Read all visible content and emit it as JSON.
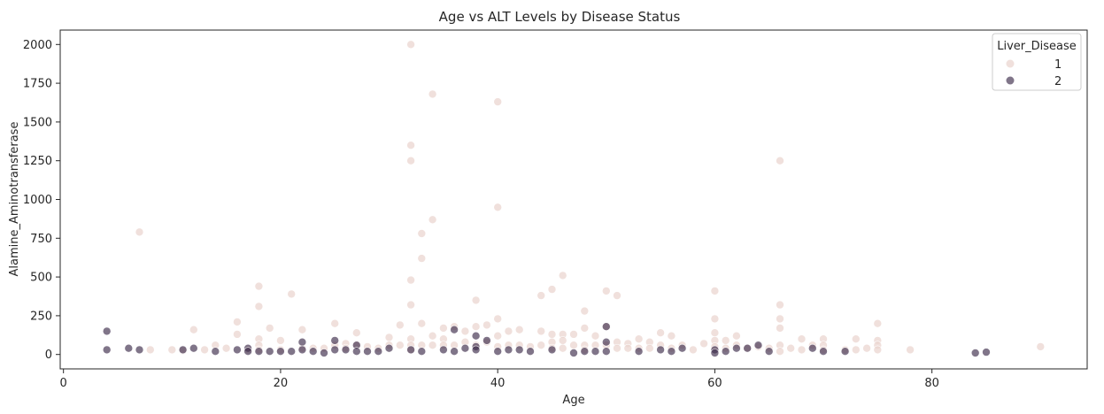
{
  "chart_data": {
    "type": "scatter",
    "title": "Age vs ALT Levels by Disease Status",
    "xlabel": "Age",
    "ylabel": "Alamine_Aminotransferase",
    "xlim": [
      -0.3,
      94.3
    ],
    "ylim": [
      -93,
      2093
    ],
    "xticks": [
      0,
      20,
      40,
      60,
      80
    ],
    "yticks": [
      0,
      250,
      500,
      750,
      1000,
      1250,
      1500,
      1750,
      2000
    ],
    "grid": false,
    "legend": {
      "title": "Liver_Disease",
      "position": "top-right"
    },
    "series": [
      {
        "name": "1",
        "color": "#ebd5d0",
        "points": [
          [
            7,
            790
          ],
          [
            8,
            30
          ],
          [
            10,
            30
          ],
          [
            11,
            25
          ],
          [
            12,
            160
          ],
          [
            13,
            30
          ],
          [
            14,
            60
          ],
          [
            15,
            40
          ],
          [
            16,
            210
          ],
          [
            16,
            130
          ],
          [
            17,
            30
          ],
          [
            18,
            440
          ],
          [
            18,
            310
          ],
          [
            18,
            100
          ],
          [
            18,
            60
          ],
          [
            18,
            30
          ],
          [
            19,
            170
          ],
          [
            20,
            90
          ],
          [
            20,
            30
          ],
          [
            21,
            390
          ],
          [
            22,
            160
          ],
          [
            22,
            40
          ],
          [
            23,
            40
          ],
          [
            24,
            40
          ],
          [
            25,
            200
          ],
          [
            25,
            60
          ],
          [
            26,
            70
          ],
          [
            26,
            40
          ],
          [
            27,
            140
          ],
          [
            27,
            60
          ],
          [
            28,
            50
          ],
          [
            29,
            40
          ],
          [
            30,
            110
          ],
          [
            30,
            60
          ],
          [
            31,
            190
          ],
          [
            31,
            60
          ],
          [
            32,
            2000
          ],
          [
            32,
            1350
          ],
          [
            32,
            1250
          ],
          [
            32,
            480
          ],
          [
            32,
            320
          ],
          [
            32,
            100
          ],
          [
            32,
            60
          ],
          [
            32,
            30
          ],
          [
            33,
            780
          ],
          [
            33,
            620
          ],
          [
            33,
            200
          ],
          [
            33,
            60
          ],
          [
            34,
            1680
          ],
          [
            34,
            870
          ],
          [
            34,
            120
          ],
          [
            34,
            60
          ],
          [
            35,
            170
          ],
          [
            35,
            100
          ],
          [
            35,
            60
          ],
          [
            36,
            180
          ],
          [
            36,
            60
          ],
          [
            37,
            150
          ],
          [
            37,
            80
          ],
          [
            38,
            350
          ],
          [
            38,
            180
          ],
          [
            38,
            60
          ],
          [
            39,
            190
          ],
          [
            39,
            80
          ],
          [
            40,
            1630
          ],
          [
            40,
            950
          ],
          [
            40,
            230
          ],
          [
            40,
            120
          ],
          [
            40,
            50
          ],
          [
            41,
            150
          ],
          [
            41,
            60
          ],
          [
            42,
            160
          ],
          [
            42,
            60
          ],
          [
            43,
            50
          ],
          [
            44,
            380
          ],
          [
            44,
            150
          ],
          [
            44,
            60
          ],
          [
            45,
            420
          ],
          [
            45,
            130
          ],
          [
            45,
            80
          ],
          [
            45,
            40
          ],
          [
            46,
            510
          ],
          [
            46,
            130
          ],
          [
            46,
            90
          ],
          [
            46,
            40
          ],
          [
            47,
            130
          ],
          [
            47,
            60
          ],
          [
            48,
            280
          ],
          [
            48,
            170
          ],
          [
            48,
            60
          ],
          [
            48,
            30
          ],
          [
            49,
            120
          ],
          [
            49,
            60
          ],
          [
            50,
            410
          ],
          [
            50,
            180
          ],
          [
            50,
            60
          ],
          [
            51,
            380
          ],
          [
            51,
            80
          ],
          [
            51,
            40
          ],
          [
            52,
            70
          ],
          [
            52,
            40
          ],
          [
            53,
            100
          ],
          [
            53,
            40
          ],
          [
            54,
            80
          ],
          [
            54,
            40
          ],
          [
            55,
            140
          ],
          [
            55,
            60
          ],
          [
            56,
            120
          ],
          [
            56,
            40
          ],
          [
            57,
            60
          ],
          [
            58,
            30
          ],
          [
            59,
            70
          ],
          [
            60,
            410
          ],
          [
            60,
            230
          ],
          [
            60,
            140
          ],
          [
            60,
            90
          ],
          [
            60,
            50
          ],
          [
            61,
            90
          ],
          [
            61,
            40
          ],
          [
            62,
            120
          ],
          [
            62,
            60
          ],
          [
            63,
            40
          ],
          [
            64,
            50
          ],
          [
            65,
            40
          ],
          [
            66,
            1250
          ],
          [
            66,
            320
          ],
          [
            66,
            230
          ],
          [
            66,
            170
          ],
          [
            66,
            60
          ],
          [
            66,
            20
          ],
          [
            67,
            40
          ],
          [
            68,
            100
          ],
          [
            68,
            30
          ],
          [
            69,
            60
          ],
          [
            70,
            100
          ],
          [
            70,
            60
          ],
          [
            70,
            30
          ],
          [
            72,
            30
          ],
          [
            73,
            100
          ],
          [
            73,
            30
          ],
          [
            74,
            40
          ],
          [
            75,
            200
          ],
          [
            75,
            90
          ],
          [
            75,
            60
          ],
          [
            75,
            30
          ],
          [
            78,
            30
          ],
          [
            90,
            50
          ]
        ]
      },
      {
        "name": "2",
        "color": "#3c2b4a",
        "points": [
          [
            4,
            150
          ],
          [
            4,
            30
          ],
          [
            6,
            40
          ],
          [
            7,
            30
          ],
          [
            11,
            30
          ],
          [
            12,
            40
          ],
          [
            14,
            20
          ],
          [
            16,
            30
          ],
          [
            17,
            40
          ],
          [
            17,
            20
          ],
          [
            18,
            20
          ],
          [
            19,
            20
          ],
          [
            20,
            20
          ],
          [
            21,
            20
          ],
          [
            22,
            80
          ],
          [
            22,
            30
          ],
          [
            23,
            20
          ],
          [
            24,
            10
          ],
          [
            25,
            90
          ],
          [
            25,
            30
          ],
          [
            26,
            30
          ],
          [
            27,
            60
          ],
          [
            27,
            20
          ],
          [
            28,
            20
          ],
          [
            29,
            20
          ],
          [
            30,
            40
          ],
          [
            32,
            30
          ],
          [
            33,
            20
          ],
          [
            35,
            30
          ],
          [
            36,
            160
          ],
          [
            36,
            20
          ],
          [
            37,
            40
          ],
          [
            38,
            120
          ],
          [
            38,
            50
          ],
          [
            38,
            30
          ],
          [
            39,
            90
          ],
          [
            40,
            20
          ],
          [
            41,
            30
          ],
          [
            42,
            30
          ],
          [
            43,
            20
          ],
          [
            45,
            30
          ],
          [
            47,
            10
          ],
          [
            48,
            20
          ],
          [
            49,
            20
          ],
          [
            50,
            180
          ],
          [
            50,
            80
          ],
          [
            50,
            20
          ],
          [
            53,
            20
          ],
          [
            55,
            30
          ],
          [
            56,
            20
          ],
          [
            57,
            40
          ],
          [
            60,
            30
          ],
          [
            60,
            10
          ],
          [
            61,
            20
          ],
          [
            62,
            40
          ],
          [
            63,
            40
          ],
          [
            64,
            60
          ],
          [
            65,
            20
          ],
          [
            69,
            40
          ],
          [
            70,
            20
          ],
          [
            72,
            20
          ],
          [
            84,
            10
          ],
          [
            85,
            15
          ]
        ]
      }
    ]
  }
}
